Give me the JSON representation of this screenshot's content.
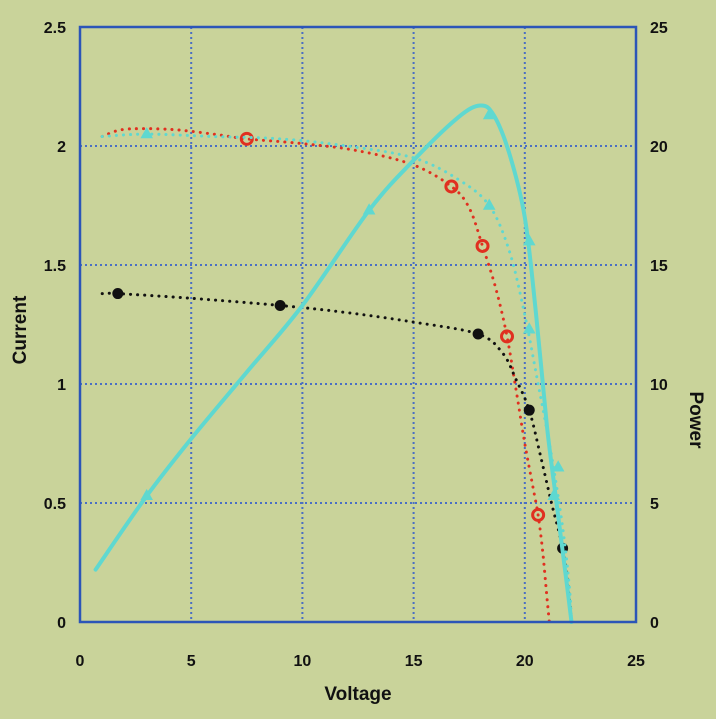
{
  "chart_data": {
    "type": "line",
    "title": "",
    "xlabel": "Voltage",
    "ylabel": "Current",
    "y2label": "Power",
    "xlim": [
      0,
      25
    ],
    "ylim": [
      0,
      2.5
    ],
    "y2lim": [
      0,
      25
    ],
    "grid": true,
    "x_ticks": [
      "0",
      "5",
      "10",
      "15",
      "20",
      "25"
    ],
    "y_ticks": [
      "0",
      "0.5",
      "1",
      "1.5",
      "2",
      "2.5"
    ],
    "y2_ticks": [
      "0",
      "5",
      "10",
      "15",
      "20",
      "25"
    ],
    "series": [
      {
        "axis": "left",
        "style": "dotted-circle",
        "color": "#e03020",
        "points": [
          [
            1.0,
            2.04
          ],
          [
            2.0,
            2.07
          ],
          [
            4.0,
            2.07
          ],
          [
            6.0,
            2.05
          ],
          [
            7.5,
            2.03
          ],
          [
            10.0,
            2.01
          ],
          [
            12.5,
            1.98
          ],
          [
            15.0,
            1.92
          ],
          [
            16.7,
            1.83
          ],
          [
            17.5,
            1.74
          ],
          [
            18.1,
            1.58
          ],
          [
            18.7,
            1.4
          ],
          [
            19.2,
            1.2
          ],
          [
            19.6,
            0.98
          ],
          [
            20.0,
            0.75
          ],
          [
            20.4,
            0.55
          ],
          [
            20.6,
            0.45
          ],
          [
            20.8,
            0.3
          ],
          [
            21.0,
            0.1
          ],
          [
            21.1,
            0.0
          ]
        ],
        "markers": [
          [
            7.5,
            2.03
          ],
          [
            16.7,
            1.83
          ],
          [
            18.1,
            1.58
          ],
          [
            19.2,
            1.2
          ],
          [
            20.6,
            0.45
          ]
        ]
      },
      {
        "axis": "left",
        "style": "dotted-dot",
        "color": "#111111",
        "points": [
          [
            1.0,
            1.38
          ],
          [
            1.7,
            1.38
          ],
          [
            5.0,
            1.36
          ],
          [
            9.0,
            1.33
          ],
          [
            12.0,
            1.3
          ],
          [
            15.0,
            1.26
          ],
          [
            17.9,
            1.21
          ],
          [
            19.0,
            1.13
          ],
          [
            19.6,
            1.02
          ],
          [
            20.2,
            0.89
          ],
          [
            20.7,
            0.7
          ],
          [
            21.2,
            0.5
          ],
          [
            21.7,
            0.31
          ],
          [
            22.0,
            0.1
          ],
          [
            22.1,
            0.0
          ]
        ],
        "markers": [
          [
            1.7,
            1.38
          ],
          [
            9.0,
            1.33
          ],
          [
            17.9,
            1.21
          ],
          [
            20.2,
            0.89
          ],
          [
            21.7,
            0.31
          ]
        ]
      },
      {
        "axis": "right",
        "style": "solid-triangle",
        "color": "#5fd8d0",
        "points": [
          [
            0.7,
            2.2
          ],
          [
            3.0,
            5.3
          ],
          [
            5.0,
            7.7
          ],
          [
            7.5,
            10.5
          ],
          [
            10.0,
            13.3
          ],
          [
            13.0,
            17.3
          ],
          [
            15.0,
            19.4
          ],
          [
            17.0,
            21.2
          ],
          [
            18.0,
            21.7
          ],
          [
            18.6,
            21.3
          ],
          [
            19.3,
            19.7
          ],
          [
            20.0,
            17.0
          ],
          [
            20.5,
            13.0
          ],
          [
            21.0,
            8.2
          ],
          [
            21.4,
            5.2
          ],
          [
            21.9,
            1.5
          ],
          [
            22.1,
            0.0
          ]
        ],
        "markers": [
          [
            3.0,
            5.3
          ],
          [
            13.0,
            17.3
          ],
          [
            18.4,
            21.3
          ],
          [
            20.2,
            16.0
          ],
          [
            20.2,
            12.3
          ],
          [
            21.3,
            5.3
          ]
        ]
      },
      {
        "axis": "right",
        "style": "dotted-triangle",
        "color": "#5fd8d0",
        "points": [
          [
            1.0,
            20.4
          ],
          [
            3.0,
            20.5
          ],
          [
            6.0,
            20.4
          ],
          [
            9.0,
            20.3
          ],
          [
            12.0,
            20.0
          ],
          [
            15.0,
            19.5
          ],
          [
            17.0,
            18.6
          ],
          [
            18.4,
            17.5
          ],
          [
            19.3,
            15.6
          ],
          [
            20.0,
            12.9
          ],
          [
            20.6,
            10.0
          ],
          [
            21.2,
            7.0
          ],
          [
            21.7,
            4.0
          ],
          [
            22.0,
            1.5
          ],
          [
            22.1,
            0.0
          ]
        ],
        "markers": [
          [
            3.0,
            20.5
          ],
          [
            18.4,
            17.5
          ],
          [
            21.5,
            6.5
          ]
        ]
      }
    ]
  }
}
